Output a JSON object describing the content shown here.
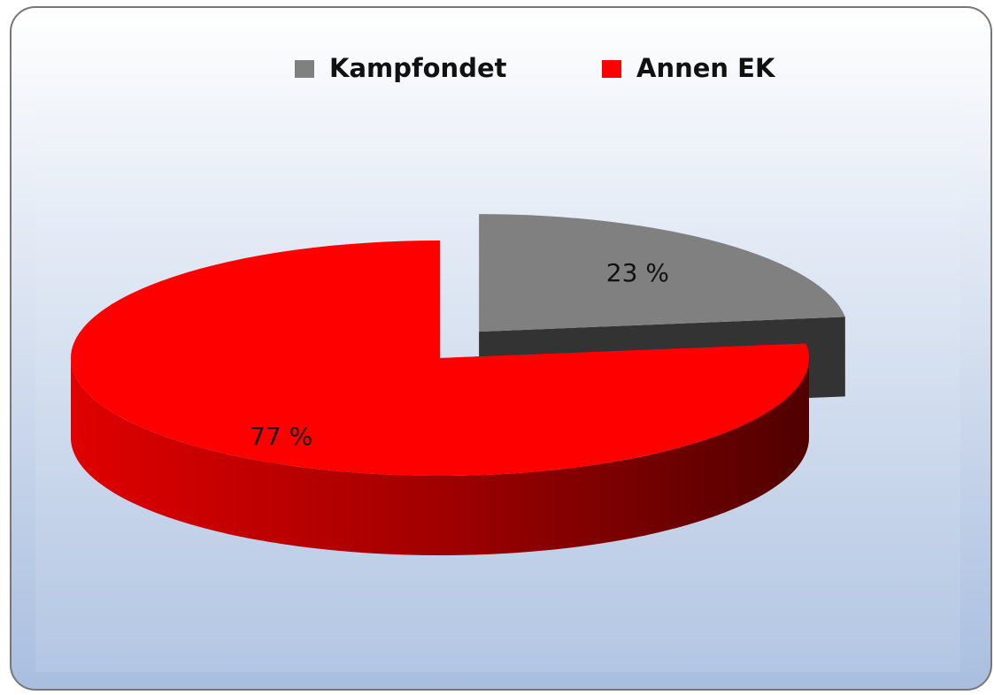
{
  "chart_data": {
    "type": "pie",
    "categories": [
      "Kampfondet",
      "Annen EK"
    ],
    "values": [
      23,
      77
    ],
    "value_labels": [
      "23 %",
      "77 %"
    ],
    "colors": [
      "#808080",
      "#ff0000"
    ],
    "legend": "top",
    "explode": [
      0.4,
      0
    ]
  }
}
